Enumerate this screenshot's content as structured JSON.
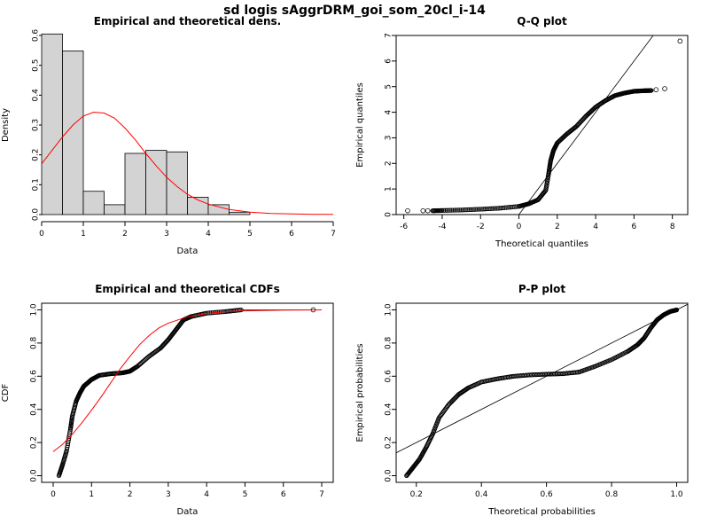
{
  "title": "sd logis sAggrDRM_goi_som_20cl_i-14",
  "colors": {
    "fit": "#ff0000",
    "bar_fill": "#d3d3d3",
    "points": "#000000"
  },
  "chart_data": [
    {
      "type": "bar",
      "title": "Empirical and theoretical dens.",
      "xlabel": "Data",
      "ylabel": "Density",
      "xlim": [
        0,
        7
      ],
      "ylim": [
        0,
        0.6
      ],
      "xticks": [
        "0",
        "1",
        "2",
        "3",
        "4",
        "5",
        "6",
        "7"
      ],
      "yticks": [
        "0.0",
        "0.1",
        "0.2",
        "0.3",
        "0.4",
        "0.5",
        "0.6"
      ],
      "bin_edges": [
        0,
        0.5,
        1.0,
        1.5,
        2.0,
        2.5,
        3.0,
        3.5,
        4.0,
        4.5,
        5.0
      ],
      "values": [
        0.605,
        0.548,
        0.078,
        0.033,
        0.205,
        0.215,
        0.21,
        0.058,
        0.033,
        0.008
      ],
      "fit_curve": {
        "x": [
          0,
          0.25,
          0.5,
          0.75,
          1.0,
          1.25,
          1.5,
          1.75,
          2.0,
          2.25,
          2.5,
          2.75,
          3.0,
          3.25,
          3.5,
          3.75,
          4.0,
          4.5,
          5.0,
          5.5,
          6.0,
          6.5,
          7.0
        ],
        "y": [
          0.17,
          0.215,
          0.26,
          0.3,
          0.33,
          0.343,
          0.34,
          0.323,
          0.29,
          0.25,
          0.205,
          0.163,
          0.125,
          0.094,
          0.068,
          0.049,
          0.035,
          0.017,
          0.008,
          0.004,
          0.002,
          0.001,
          0.0005
        ]
      }
    },
    {
      "type": "scatter",
      "title": "Q-Q plot",
      "xlabel": "Theoretical quantiles",
      "ylabel": "Empirical quantiles",
      "xlim": [
        -6.4,
        8.8
      ],
      "ylim": [
        0,
        7
      ],
      "xticks": [
        "-6",
        "-4",
        "-2",
        "0",
        "2",
        "4",
        "6",
        "8"
      ],
      "yticks": [
        "0",
        "1",
        "2",
        "3",
        "4",
        "5",
        "6",
        "7"
      ],
      "reference_line": {
        "slope": 1,
        "intercept": 0
      },
      "curve": {
        "x": [
          -4.5,
          -4.0,
          -3.0,
          -2.0,
          -1.0,
          0.0,
          0.5,
          1.0,
          1.4,
          1.55,
          1.65,
          1.8,
          2.0,
          2.5,
          3.0,
          3.5,
          4.0,
          4.5,
          5.0,
          5.5,
          6.0,
          6.5,
          6.9
        ],
        "y": [
          0.15,
          0.16,
          0.18,
          0.21,
          0.25,
          0.32,
          0.42,
          0.58,
          0.95,
          1.6,
          2.1,
          2.5,
          2.8,
          3.15,
          3.45,
          3.85,
          4.2,
          4.45,
          4.65,
          4.75,
          4.82,
          4.84,
          4.85
        ]
      },
      "outliers": {
        "x": [
          -5.8,
          -5.0,
          -4.75,
          7.15,
          7.6,
          8.4
        ],
        "y": [
          0.15,
          0.15,
          0.15,
          4.88,
          4.92,
          6.78
        ]
      }
    },
    {
      "type": "line",
      "title": "Empirical and theoretical CDFs",
      "xlabel": "Data",
      "ylabel": "CDF",
      "xlim": [
        -0.3,
        7.3
      ],
      "ylim": [
        -0.04,
        1.04
      ],
      "xticks": [
        "0",
        "1",
        "2",
        "3",
        "4",
        "5",
        "6",
        "7"
      ],
      "yticks": [
        "0.0",
        "0.2",
        "0.4",
        "0.6",
        "0.8",
        "1.0"
      ],
      "empirical": {
        "x": [
          0.15,
          0.25,
          0.35,
          0.45,
          0.5,
          0.6,
          0.7,
          0.8,
          1.0,
          1.2,
          1.5,
          1.8,
          2.0,
          2.2,
          2.5,
          2.8,
          3.0,
          3.2,
          3.4,
          3.6,
          4.0,
          4.5,
          4.9
        ],
        "y": [
          0.0,
          0.07,
          0.15,
          0.28,
          0.36,
          0.45,
          0.5,
          0.54,
          0.58,
          0.605,
          0.615,
          0.62,
          0.63,
          0.66,
          0.72,
          0.77,
          0.82,
          0.88,
          0.94,
          0.96,
          0.98,
          0.99,
          1.0
        ]
      },
      "empirical_outlier": {
        "x": 6.78,
        "y": 1.0
      },
      "fit_curve": {
        "x": [
          0,
          0.25,
          0.5,
          0.75,
          1.0,
          1.25,
          1.5,
          1.75,
          2.0,
          2.25,
          2.5,
          2.75,
          3.0,
          3.5,
          4.0,
          4.5,
          5.0,
          6.0,
          7.0
        ],
        "y": [
          0.145,
          0.19,
          0.25,
          0.32,
          0.395,
          0.475,
          0.56,
          0.645,
          0.72,
          0.79,
          0.845,
          0.89,
          0.92,
          0.958,
          0.978,
          0.989,
          0.994,
          0.999,
          1.0
        ]
      }
    },
    {
      "type": "scatter",
      "title": "P-P plot",
      "xlabel": "Theoretical probabilities",
      "ylabel": "Empirical probabilities",
      "xlim": [
        0.138,
        1.034
      ],
      "ylim": [
        -0.04,
        1.04
      ],
      "xticks": [
        "0.2",
        "0.4",
        "0.6",
        "0.8",
        "1.0"
      ],
      "yticks": [
        "0.0",
        "0.2",
        "0.4",
        "0.6",
        "0.8",
        "1.0"
      ],
      "reference_line": {
        "slope": 1,
        "intercept": 0
      },
      "curve": {
        "x": [
          0.17,
          0.19,
          0.21,
          0.23,
          0.25,
          0.27,
          0.3,
          0.33,
          0.36,
          0.4,
          0.45,
          0.5,
          0.55,
          0.6,
          0.65,
          0.7,
          0.75,
          0.8,
          0.85,
          0.88,
          0.9,
          0.92,
          0.94,
          0.96,
          0.98,
          1.0
        ],
        "y": [
          0.0,
          0.05,
          0.1,
          0.17,
          0.25,
          0.35,
          0.43,
          0.49,
          0.53,
          0.565,
          0.585,
          0.6,
          0.608,
          0.612,
          0.615,
          0.625,
          0.66,
          0.7,
          0.75,
          0.79,
          0.83,
          0.89,
          0.94,
          0.97,
          0.99,
          1.0
        ]
      }
    }
  ]
}
